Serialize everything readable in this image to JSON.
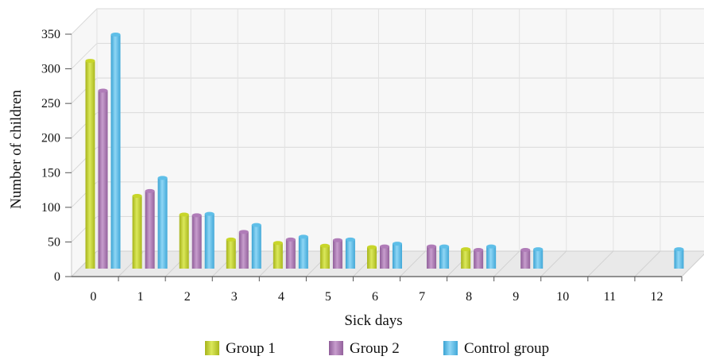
{
  "chart_data": {
    "type": "bar",
    "categories": [
      "0",
      "1",
      "2",
      "3",
      "4",
      "5",
      "6",
      "7",
      "8",
      "9",
      "10",
      "11",
      "12"
    ],
    "series": [
      {
        "name": "Group 1",
        "color": "#c8d62a",
        "values": [
          300,
          105,
          78,
          42,
          37,
          33,
          31,
          null,
          28,
          null,
          null,
          null,
          null
        ]
      },
      {
        "name": "Group 2",
        "color": "#b07cb8",
        "values": [
          257,
          112,
          77,
          53,
          42,
          41,
          32,
          32,
          27,
          27,
          null,
          null,
          null
        ]
      },
      {
        "name": "Control group",
        "color": "#5fbfe8",
        "values": [
          338,
          131,
          79,
          63,
          46,
          42,
          36,
          32,
          32,
          28,
          null,
          null,
          28
        ]
      }
    ],
    "xlabel": "Sick days",
    "ylabel": "Number of children",
    "yticks": [
      "0",
      "50",
      "100",
      "150",
      "200",
      "250",
      "300",
      "350"
    ],
    "ylim": [
      0,
      350
    ],
    "grid": true,
    "legend_position": "bottom"
  }
}
